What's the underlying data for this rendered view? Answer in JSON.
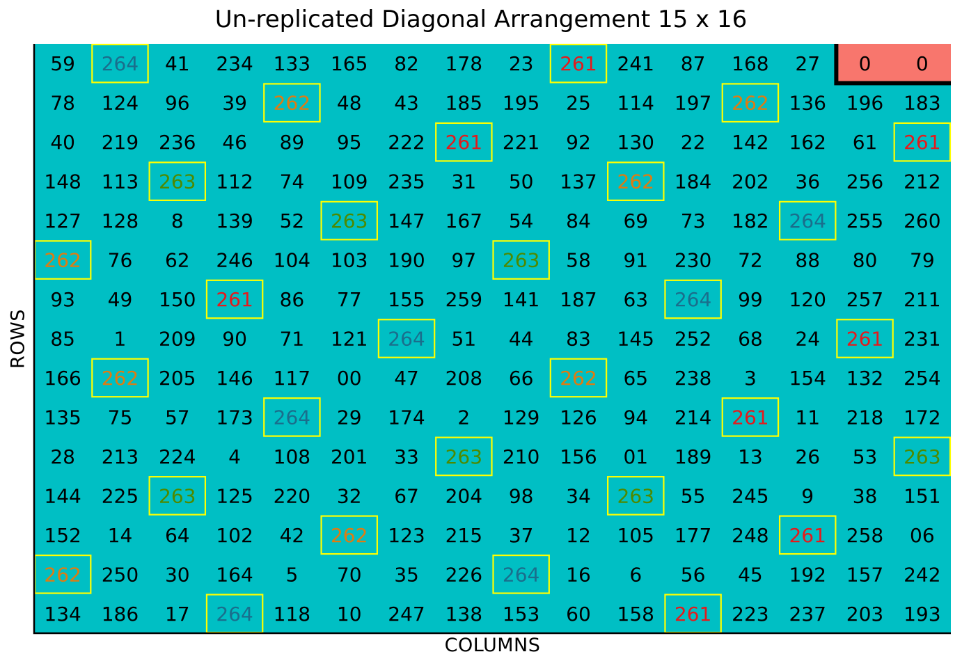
{
  "chart_data": {
    "type": "heatmap",
    "title": "Un-replicated Diagonal Arrangement 15 x 16",
    "xlabel": "COLUMNS",
    "ylabel": "ROWS",
    "n_rows": 15,
    "n_cols": 16,
    "grid": false,
    "fill_color": "#00BFC4",
    "filler_fill_color": "#F8766D",
    "check_box_color": "#FFFF00",
    "check_text_colors": {
      "261": "#E41A1C",
      "262": "#E07B10",
      "263": "#4D8A00",
      "264": "#1A6E8C"
    },
    "normal_text_color": "#000000",
    "cells": [
      [
        "59",
        "264",
        "41",
        "234",
        "133",
        "165",
        "82",
        "178",
        "23",
        "261",
        "241",
        "87",
        "168",
        "27",
        "0",
        "0"
      ],
      [
        "78",
        "124",
        "96",
        "39",
        "262",
        "48",
        "43",
        "185",
        "195",
        "25",
        "114",
        "197",
        "262",
        "136",
        "196",
        "183"
      ],
      [
        "40",
        "219",
        "236",
        "46",
        "89",
        "95",
        "222",
        "261",
        "221",
        "92",
        "130",
        "22",
        "142",
        "162",
        "61",
        "261"
      ],
      [
        "148",
        "113",
        "263",
        "112",
        "74",
        "109",
        "235",
        "31",
        "50",
        "137",
        "262",
        "184",
        "202",
        "36",
        "256",
        "212"
      ],
      [
        "127",
        "128",
        "8",
        "139",
        "52",
        "263",
        "147",
        "167",
        "54",
        "84",
        "69",
        "73",
        "182",
        "264",
        "255",
        "260"
      ],
      [
        "262",
        "76",
        "62",
        "246",
        "104",
        "103",
        "190",
        "97",
        "263",
        "58",
        "91",
        "230",
        "72",
        "88",
        "80",
        "79"
      ],
      [
        "93",
        "49",
        "150",
        "261",
        "86",
        "77",
        "155",
        "259",
        "141",
        "187",
        "63",
        "264",
        "99",
        "120",
        "257",
        "211"
      ],
      [
        "85",
        "1",
        "209",
        "90",
        "71",
        "121",
        "264",
        "51",
        "44",
        "83",
        "145",
        "252",
        "68",
        "24",
        "261",
        "231"
      ],
      [
        "166",
        "262",
        "205",
        "146",
        "117",
        "00",
        "47",
        "208",
        "66",
        "262",
        "65",
        "238",
        "3",
        "154",
        "132",
        "254"
      ],
      [
        "135",
        "75",
        "57",
        "173",
        "264",
        "29",
        "174",
        "2",
        "129",
        "126",
        "94",
        "214",
        "261",
        "11",
        "218",
        "172"
      ],
      [
        "28",
        "213",
        "224",
        "4",
        "108",
        "201",
        "33",
        "263",
        "210",
        "156",
        "01",
        "189",
        "13",
        "26",
        "53",
        "263"
      ],
      [
        "144",
        "225",
        "263",
        "125",
        "220",
        "32",
        "67",
        "204",
        "98",
        "34",
        "263",
        "55",
        "245",
        "9",
        "38",
        "151"
      ],
      [
        "152",
        "14",
        "64",
        "102",
        "42",
        "262",
        "123",
        "215",
        "37",
        "12",
        "105",
        "177",
        "248",
        "261",
        "258",
        "06"
      ],
      [
        "262",
        "250",
        "30",
        "164",
        "5",
        "70",
        "35",
        "226",
        "264",
        "16",
        "6",
        "56",
        "45",
        "192",
        "157",
        "242"
      ],
      [
        "134",
        "186",
        "17",
        "264",
        "118",
        "10",
        "247",
        "138",
        "153",
        "60",
        "158",
        "261",
        "223",
        "237",
        "203",
        "193"
      ]
    ],
    "checks": [
      "261",
      "262",
      "263",
      "264"
    ],
    "filler_cells": [
      [
        0,
        14
      ],
      [
        0,
        15
      ]
    ]
  }
}
